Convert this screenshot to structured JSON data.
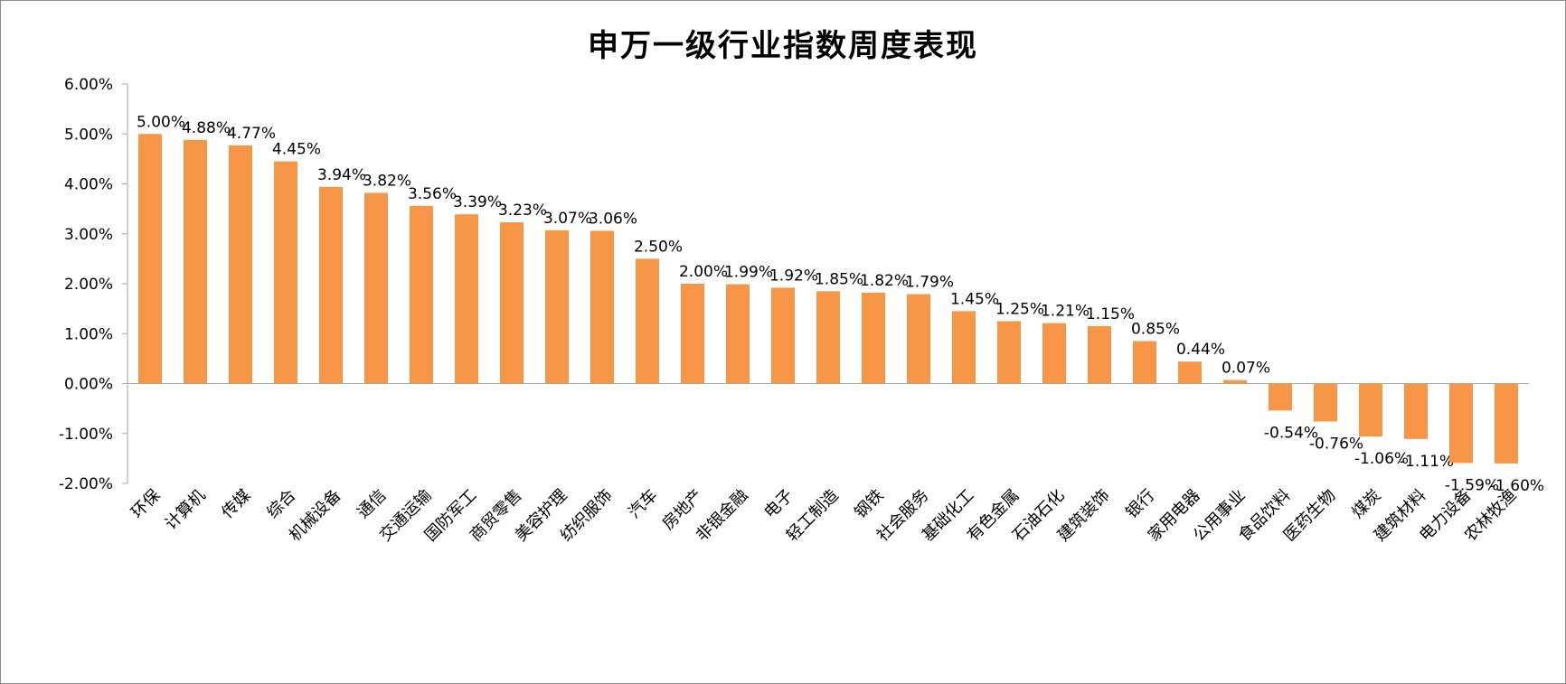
{
  "chart_data": {
    "type": "bar",
    "title": "申万一级行业指数周度表现",
    "ylim": [
      -2,
      6
    ],
    "yticks": [
      -2,
      -1,
      0,
      1,
      2,
      3,
      4,
      5,
      6
    ],
    "ytick_labels": [
      "-2.00%",
      "-1.00%",
      "0.00%",
      "1.00%",
      "2.00%",
      "3.00%",
      "4.00%",
      "5.00%",
      "6.00%"
    ],
    "grid": false,
    "legend": "none",
    "bar_color": "#F79646",
    "categories": [
      "环保",
      "计算机",
      "传媒",
      "综合",
      "机械设备",
      "通信",
      "交通运输",
      "国防军工",
      "商贸零售",
      "美容护理",
      "纺织服饰",
      "汽车",
      "房地产",
      "非银金融",
      "电子",
      "轻工制造",
      "钢铁",
      "社会服务",
      "基础化工",
      "有色金属",
      "石油石化",
      "建筑装饰",
      "银行",
      "家用电器",
      "公用事业",
      "食品饮料",
      "医药生物",
      "煤炭",
      "建筑材料",
      "电力设备",
      "农林牧渔"
    ],
    "values": [
      5.0,
      4.88,
      4.77,
      4.45,
      3.94,
      3.82,
      3.56,
      3.39,
      3.23,
      3.07,
      3.06,
      2.5,
      2.0,
      1.99,
      1.92,
      1.85,
      1.82,
      1.79,
      1.45,
      1.25,
      1.21,
      1.15,
      0.85,
      0.44,
      0.07,
      -0.54,
      -0.76,
      -1.06,
      -1.11,
      -1.59,
      -1.6
    ],
    "value_labels": [
      "5.00%",
      "4.88%",
      "4.77%",
      "4.45%",
      "3.94%",
      "3.82%",
      "3.56%",
      "3.39%",
      "3.23%",
      "3.07%",
      "3.06%",
      "2.50%",
      "2.00%",
      "1.99%",
      "1.92%",
      "1.85%",
      "1.82%",
      "1.79%",
      "1.45%",
      "1.25%",
      "1.21%",
      "1.15%",
      "0.85%",
      "0.44%",
      "0.07%",
      "-0.54%",
      "-0.76%",
      "-1.06%",
      "-1.11%",
      "-1.59%",
      "-1.60%"
    ]
  }
}
